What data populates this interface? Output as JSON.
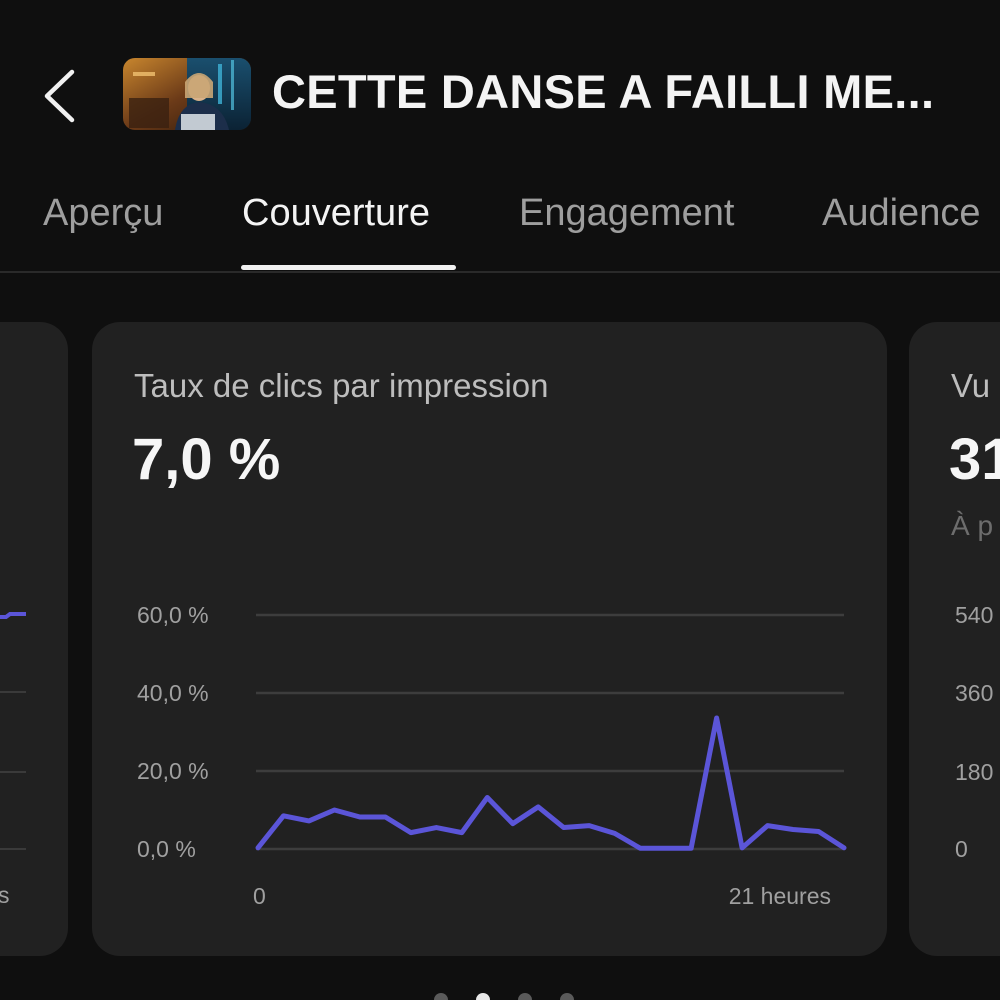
{
  "header": {
    "video_title": "CETTE DANSE A FAILLI ME...",
    "back_icon": "chevron-left-icon"
  },
  "tabs": [
    {
      "label": "Aperçu",
      "active": false
    },
    {
      "label": "Couverture",
      "active": true
    },
    {
      "label": "Engagement",
      "active": false
    },
    {
      "label": "Audience",
      "active": false
    }
  ],
  "cards": {
    "left": {
      "x_label_partial": "s"
    },
    "main": {
      "title": "Taux de clics par impression",
      "value": "7,0 %"
    },
    "right": {
      "title_partial": "Vu",
      "value_partial": "31",
      "subtitle_partial": "À p",
      "y_ticks": [
        "540",
        "360",
        "180",
        "0"
      ]
    }
  },
  "chart_data": {
    "type": "line",
    "title": "Taux de clics par impression",
    "x_tick_labels": [
      "0",
      "21 heures"
    ],
    "y_tick_labels": [
      "60,0 %",
      "40,0 %",
      "20,0 %",
      "0,0 %"
    ],
    "ylim": [
      0,
      60
    ],
    "grid": true,
    "color": "#5b55d8",
    "x": [
      0,
      1,
      2,
      3,
      4,
      5,
      6,
      7,
      8,
      9,
      10,
      11,
      12,
      13,
      14,
      15,
      16,
      17,
      18,
      19,
      20,
      21,
      22,
      23
    ],
    "values": [
      0.3,
      8.5,
      7.2,
      10.0,
      8.2,
      8.2,
      4.2,
      5.5,
      4.2,
      13.2,
      6.5,
      10.8,
      5.5,
      6.0,
      4.0,
      0.2,
      0.2,
      0.2,
      33.6,
      0.3,
      6.0,
      5.0,
      4.5,
      0.3
    ]
  },
  "pager": {
    "count": 4,
    "active_index": 1
  }
}
